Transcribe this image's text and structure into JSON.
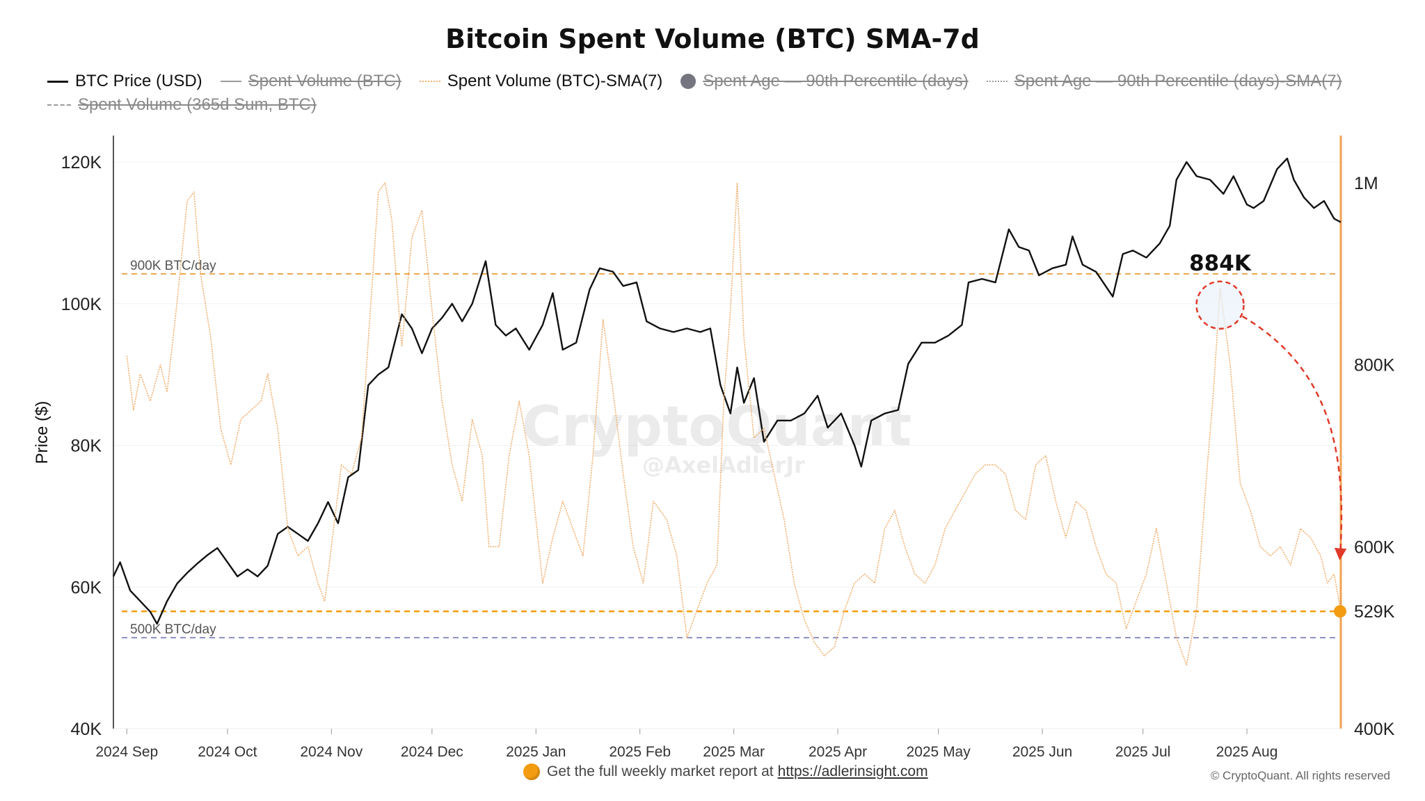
{
  "chart_data": {
    "type": "line",
    "title": "Bitcoin Spent Volume (BTC) SMA-7d",
    "ylabel": "Price ($)",
    "y_left_range": [
      40000,
      120000
    ],
    "y_left_ticks": [
      "120K",
      "100K",
      "80K",
      "60K",
      "40K"
    ],
    "y_right_range": [
      400000,
      1000000
    ],
    "y_right_ticks": [
      "1M",
      "800K",
      "600K",
      "529K",
      "400K"
    ],
    "x_range": [
      "2024-08-28",
      "2025-08-29"
    ],
    "x_ticks": [
      "2024 Sep",
      "2024 Oct",
      "2024 Nov",
      "2024 Dec",
      "2025 Jan",
      "2025 Feb",
      "2025 Mar",
      "2025 Apr",
      "2025 May",
      "2025 Jun",
      "2025 Jul",
      "2025 Aug"
    ],
    "legend": [
      {
        "label": "BTC Price (USD)",
        "style": "solid",
        "hidden": false
      },
      {
        "label": "Spent Volume (BTC)",
        "style": "solid-grey",
        "hidden": true
      },
      {
        "label": "Spent Volume (BTC)-SMA(7)",
        "style": "dotted-orange",
        "hidden": false
      },
      {
        "label": "Spent Age — 90th Percentile (days)",
        "style": "circle",
        "hidden": true
      },
      {
        "label": "Spent Age — 90th Percentile (days)-SMA(7)",
        "style": "dotted-grey",
        "hidden": true
      },
      {
        "label": "Spent Volume (365d Sum, BTC)",
        "style": "dashed-grey",
        "hidden": true
      }
    ],
    "series": [
      {
        "name": "BTC Price (USD)",
        "axis": "left",
        "color": "#111111",
        "points": [
          [
            "2024-08-28",
            61500
          ],
          [
            "2024-08-30",
            63500
          ],
          [
            "2024-09-02",
            59500
          ],
          [
            "2024-09-05",
            58000
          ],
          [
            "2024-09-08",
            56500
          ],
          [
            "2024-09-10",
            54800
          ],
          [
            "2024-09-13",
            58000
          ],
          [
            "2024-09-16",
            60500
          ],
          [
            "2024-09-19",
            62000
          ],
          [
            "2024-09-22",
            63300
          ],
          [
            "2024-09-25",
            64500
          ],
          [
            "2024-09-28",
            65500
          ],
          [
            "2024-10-01",
            63500
          ],
          [
            "2024-10-04",
            61500
          ],
          [
            "2024-10-07",
            62500
          ],
          [
            "2024-10-10",
            61500
          ],
          [
            "2024-10-13",
            63000
          ],
          [
            "2024-10-16",
            67500
          ],
          [
            "2024-10-19",
            68500
          ],
          [
            "2024-10-22",
            67500
          ],
          [
            "2024-10-25",
            66500
          ],
          [
            "2024-10-28",
            69000
          ],
          [
            "2024-10-31",
            72000
          ],
          [
            "2024-11-03",
            69000
          ],
          [
            "2024-11-06",
            75500
          ],
          [
            "2024-11-09",
            76500
          ],
          [
            "2024-11-12",
            88500
          ],
          [
            "2024-11-15",
            90000
          ],
          [
            "2024-11-18",
            91000
          ],
          [
            "2024-11-22",
            98500
          ],
          [
            "2024-11-25",
            96500
          ],
          [
            "2024-11-28",
            93000
          ],
          [
            "2024-12-01",
            96500
          ],
          [
            "2024-12-04",
            98000
          ],
          [
            "2024-12-07",
            100000
          ],
          [
            "2024-12-10",
            97500
          ],
          [
            "2024-12-13",
            100000
          ],
          [
            "2024-12-16",
            104500
          ],
          [
            "2024-12-17",
            106000
          ],
          [
            "2024-12-20",
            97000
          ],
          [
            "2024-12-23",
            95500
          ],
          [
            "2024-12-26",
            96500
          ],
          [
            "2024-12-30",
            93500
          ],
          [
            "2025-01-03",
            97000
          ],
          [
            "2025-01-06",
            101500
          ],
          [
            "2025-01-09",
            93500
          ],
          [
            "2025-01-13",
            94500
          ],
          [
            "2025-01-17",
            102000
          ],
          [
            "2025-01-20",
            105000
          ],
          [
            "2025-01-24",
            104500
          ],
          [
            "2025-01-27",
            102500
          ],
          [
            "2025-01-31",
            103000
          ],
          [
            "2025-02-03",
            97500
          ],
          [
            "2025-02-07",
            96500
          ],
          [
            "2025-02-11",
            96000
          ],
          [
            "2025-02-15",
            96500
          ],
          [
            "2025-02-19",
            96000
          ],
          [
            "2025-02-22",
            96500
          ],
          [
            "2025-02-25",
            88500
          ],
          [
            "2025-02-28",
            84500
          ],
          [
            "2025-03-02",
            91000
          ],
          [
            "2025-03-04",
            86000
          ],
          [
            "2025-03-07",
            89500
          ],
          [
            "2025-03-10",
            80500
          ],
          [
            "2025-03-14",
            83500
          ],
          [
            "2025-03-18",
            83500
          ],
          [
            "2025-03-22",
            84500
          ],
          [
            "2025-03-26",
            87000
          ],
          [
            "2025-03-29",
            82500
          ],
          [
            "2025-04-02",
            84500
          ],
          [
            "2025-04-06",
            80000
          ],
          [
            "2025-04-08",
            77000
          ],
          [
            "2025-04-11",
            83500
          ],
          [
            "2025-04-15",
            84500
          ],
          [
            "2025-04-19",
            85000
          ],
          [
            "2025-04-22",
            91500
          ],
          [
            "2025-04-26",
            94500
          ],
          [
            "2025-04-30",
            94500
          ],
          [
            "2025-05-04",
            95500
          ],
          [
            "2025-05-08",
            97000
          ],
          [
            "2025-05-10",
            103000
          ],
          [
            "2025-05-14",
            103500
          ],
          [
            "2025-05-18",
            103000
          ],
          [
            "2025-05-22",
            110500
          ],
          [
            "2025-05-25",
            108000
          ],
          [
            "2025-05-28",
            107500
          ],
          [
            "2025-05-31",
            104000
          ],
          [
            "2025-06-04",
            105000
          ],
          [
            "2025-06-08",
            105500
          ],
          [
            "2025-06-10",
            109500
          ],
          [
            "2025-06-13",
            105500
          ],
          [
            "2025-06-17",
            104500
          ],
          [
            "2025-06-22",
            101000
          ],
          [
            "2025-06-25",
            107000
          ],
          [
            "2025-06-28",
            107500
          ],
          [
            "2025-07-02",
            106500
          ],
          [
            "2025-07-06",
            108500
          ],
          [
            "2025-07-09",
            111000
          ],
          [
            "2025-07-11",
            117500
          ],
          [
            "2025-07-14",
            120000
          ],
          [
            "2025-07-17",
            118000
          ],
          [
            "2025-07-21",
            117500
          ],
          [
            "2025-07-25",
            115500
          ],
          [
            "2025-07-28",
            118000
          ],
          [
            "2025-08-01",
            114000
          ],
          [
            "2025-08-03",
            113500
          ],
          [
            "2025-08-06",
            114500
          ],
          [
            "2025-08-10",
            119000
          ],
          [
            "2025-08-13",
            120500
          ],
          [
            "2025-08-15",
            117500
          ],
          [
            "2025-08-18",
            115000
          ],
          [
            "2025-08-21",
            113500
          ],
          [
            "2025-08-24",
            114500
          ],
          [
            "2025-08-27",
            112000
          ],
          [
            "2025-08-29",
            111500
          ]
        ]
      },
      {
        "name": "Spent Volume (BTC)-SMA(7)",
        "axis": "right",
        "color": "#f0b070",
        "points": [
          [
            "2024-09-01",
            810000
          ],
          [
            "2024-09-03",
            750000
          ],
          [
            "2024-09-05",
            790000
          ],
          [
            "2024-09-08",
            760000
          ],
          [
            "2024-09-11",
            800000
          ],
          [
            "2024-09-13",
            770000
          ],
          [
            "2024-09-16",
            870000
          ],
          [
            "2024-09-19",
            980000
          ],
          [
            "2024-09-21",
            990000
          ],
          [
            "2024-09-23",
            900000
          ],
          [
            "2024-09-26",
            830000
          ],
          [
            "2024-09-29",
            730000
          ],
          [
            "2024-10-02",
            690000
          ],
          [
            "2024-10-05",
            740000
          ],
          [
            "2024-10-08",
            750000
          ],
          [
            "2024-10-11",
            760000
          ],
          [
            "2024-10-13",
            790000
          ],
          [
            "2024-10-16",
            730000
          ],
          [
            "2024-10-19",
            620000
          ],
          [
            "2024-10-22",
            590000
          ],
          [
            "2024-10-25",
            600000
          ],
          [
            "2024-10-28",
            560000
          ],
          [
            "2024-10-30",
            540000
          ],
          [
            "2024-11-02",
            630000
          ],
          [
            "2024-11-04",
            690000
          ],
          [
            "2024-11-07",
            680000
          ],
          [
            "2024-11-10",
            720000
          ],
          [
            "2024-11-13",
            880000
          ],
          [
            "2024-11-15",
            990000
          ],
          [
            "2024-11-17",
            1000000
          ],
          [
            "2024-11-19",
            960000
          ],
          [
            "2024-11-22",
            820000
          ],
          [
            "2024-11-25",
            940000
          ],
          [
            "2024-11-28",
            970000
          ],
          [
            "2024-12-01",
            860000
          ],
          [
            "2024-12-04",
            760000
          ],
          [
            "2024-12-07",
            690000
          ],
          [
            "2024-12-10",
            650000
          ],
          [
            "2024-12-13",
            740000
          ],
          [
            "2024-12-16",
            700000
          ],
          [
            "2024-12-18",
            600000
          ],
          [
            "2024-12-21",
            600000
          ],
          [
            "2024-12-24",
            700000
          ],
          [
            "2024-12-27",
            760000
          ],
          [
            "2024-12-30",
            700000
          ],
          [
            "2025-01-03",
            560000
          ],
          [
            "2025-01-06",
            610000
          ],
          [
            "2025-01-09",
            650000
          ],
          [
            "2025-01-12",
            620000
          ],
          [
            "2025-01-15",
            590000
          ],
          [
            "2025-01-18",
            700000
          ],
          [
            "2025-01-21",
            850000
          ],
          [
            "2025-01-24",
            770000
          ],
          [
            "2025-01-27",
            680000
          ],
          [
            "2025-01-30",
            600000
          ],
          [
            "2025-02-02",
            560000
          ],
          [
            "2025-02-05",
            650000
          ],
          [
            "2025-02-09",
            630000
          ],
          [
            "2025-02-12",
            590000
          ],
          [
            "2025-02-15",
            500000
          ],
          [
            "2025-02-18",
            530000
          ],
          [
            "2025-02-21",
            560000
          ],
          [
            "2025-02-24",
            580000
          ],
          [
            "2025-02-26",
            760000
          ],
          [
            "2025-02-28",
            860000
          ],
          [
            "2025-03-02",
            1000000
          ],
          [
            "2025-03-04",
            830000
          ],
          [
            "2025-03-07",
            720000
          ],
          [
            "2025-03-10",
            730000
          ],
          [
            "2025-03-13",
            680000
          ],
          [
            "2025-03-16",
            630000
          ],
          [
            "2025-03-19",
            560000
          ],
          [
            "2025-03-22",
            520000
          ],
          [
            "2025-03-25",
            495000
          ],
          [
            "2025-03-28",
            480000
          ],
          [
            "2025-03-31",
            490000
          ],
          [
            "2025-04-03",
            530000
          ],
          [
            "2025-04-06",
            560000
          ],
          [
            "2025-04-09",
            570000
          ],
          [
            "2025-04-12",
            560000
          ],
          [
            "2025-04-15",
            620000
          ],
          [
            "2025-04-18",
            640000
          ],
          [
            "2025-04-21",
            600000
          ],
          [
            "2025-04-24",
            570000
          ],
          [
            "2025-04-27",
            560000
          ],
          [
            "2025-04-30",
            580000
          ],
          [
            "2025-05-03",
            620000
          ],
          [
            "2025-05-06",
            640000
          ],
          [
            "2025-05-09",
            660000
          ],
          [
            "2025-05-12",
            680000
          ],
          [
            "2025-05-15",
            690000
          ],
          [
            "2025-05-18",
            690000
          ],
          [
            "2025-05-21",
            680000
          ],
          [
            "2025-05-24",
            640000
          ],
          [
            "2025-05-27",
            630000
          ],
          [
            "2025-05-30",
            690000
          ],
          [
            "2025-06-02",
            700000
          ],
          [
            "2025-06-05",
            650000
          ],
          [
            "2025-06-08",
            610000
          ],
          [
            "2025-06-11",
            650000
          ],
          [
            "2025-06-14",
            640000
          ],
          [
            "2025-06-17",
            600000
          ],
          [
            "2025-06-20",
            570000
          ],
          [
            "2025-06-23",
            560000
          ],
          [
            "2025-06-26",
            510000
          ],
          [
            "2025-06-29",
            540000
          ],
          [
            "2025-07-02",
            570000
          ],
          [
            "2025-07-05",
            620000
          ],
          [
            "2025-07-08",
            560000
          ],
          [
            "2025-07-11",
            500000
          ],
          [
            "2025-07-14",
            470000
          ],
          [
            "2025-07-17",
            530000
          ],
          [
            "2025-07-20",
            680000
          ],
          [
            "2025-07-22",
            770000
          ],
          [
            "2025-07-24",
            884000
          ],
          [
            "2025-07-27",
            800000
          ],
          [
            "2025-07-30",
            670000
          ],
          [
            "2025-08-02",
            640000
          ],
          [
            "2025-08-05",
            600000
          ],
          [
            "2025-08-08",
            590000
          ],
          [
            "2025-08-11",
            600000
          ],
          [
            "2025-08-14",
            580000
          ],
          [
            "2025-08-17",
            620000
          ],
          [
            "2025-08-20",
            610000
          ],
          [
            "2025-08-23",
            590000
          ],
          [
            "2025-08-25",
            560000
          ],
          [
            "2025-08-27",
            570000
          ],
          [
            "2025-08-29",
            529000
          ]
        ]
      }
    ],
    "reference_lines": [
      {
        "label": "900K BTC/day",
        "value": 900000,
        "axis": "right",
        "color": "#e8a54a",
        "style": "dashed"
      },
      {
        "label": "500K BTC/day",
        "value": 500000,
        "axis": "right",
        "color": "#8a8fc0",
        "style": "dashed"
      },
      {
        "label": "",
        "value": 529000,
        "axis": "right",
        "color": "#f39c12",
        "style": "dashed"
      }
    ],
    "annotations": [
      {
        "text": "884K",
        "date": "2025-07-24",
        "value": 884000
      },
      {
        "text": "529K",
        "date": "2025-08-29",
        "value": 529000
      }
    ],
    "watermark": "CryptoQuant",
    "watermark_sub": "@AxelAdlerJr"
  },
  "footer": {
    "text": "Get the full weekly market report at",
    "link": "https://adlerinsight.com"
  },
  "copyright": "© CryptoQuant. All rights reserved"
}
